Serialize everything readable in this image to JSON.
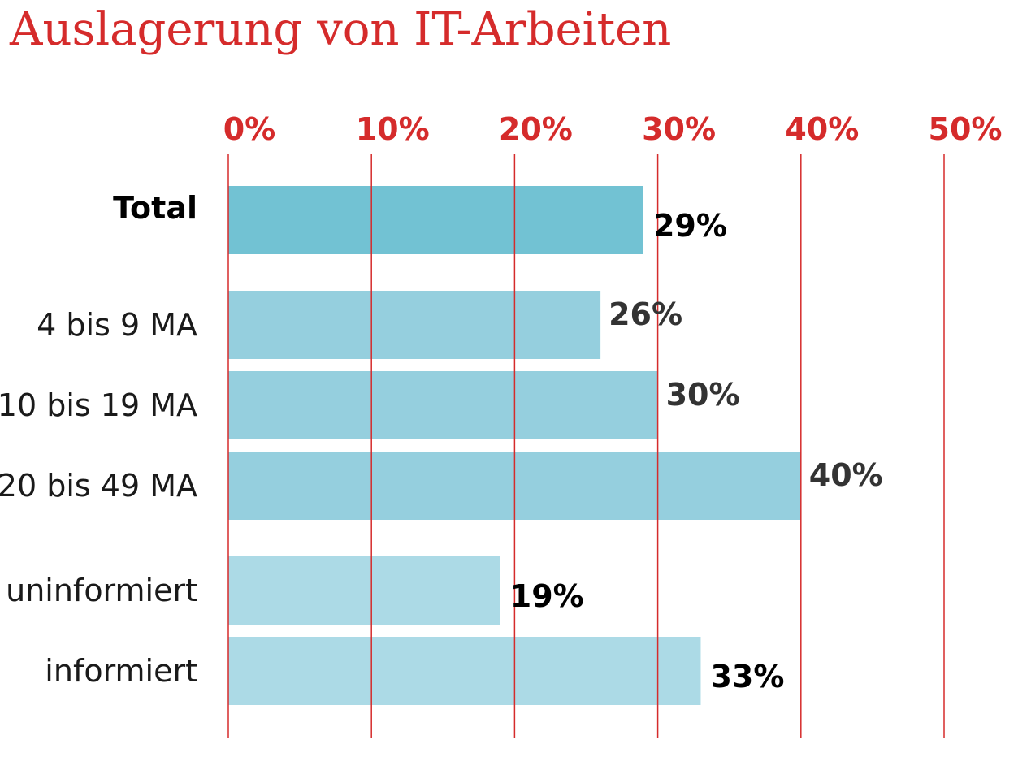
{
  "chart_data": {
    "type": "bar",
    "orientation": "horizontal",
    "title": "Auslagerung von IT-Arbeiten",
    "xlabel": "",
    "ylabel": "",
    "xlim": [
      0,
      50
    ],
    "grid": true,
    "tick_values": [
      0,
      10,
      20,
      30,
      40,
      50
    ],
    "tick_labels": [
      "0%",
      "10%",
      "20%",
      "30%",
      "40%",
      "50%"
    ],
    "categories": [
      "Total",
      "4 bis 9 MA",
      "10 bis 19 MA",
      "20 bis 49 MA",
      "uninformiert",
      "informiert"
    ],
    "values": [
      29,
      26,
      30,
      40,
      19,
      33
    ],
    "value_labels": [
      "29%",
      "26%",
      "30%",
      "40%",
      "19%",
      "33%"
    ],
    "groups": [
      0,
      1,
      1,
      1,
      2,
      2
    ],
    "group_colors": [
      "#72c2d3",
      "#95cfde",
      "#acdae6"
    ],
    "emphasis": [
      true,
      false,
      false,
      false,
      true,
      true
    ],
    "value_label_colors": [
      "#000000",
      "#333333",
      "#333333",
      "#333333",
      "#000000",
      "#000000"
    ],
    "accent_color": "#d52b2b"
  }
}
